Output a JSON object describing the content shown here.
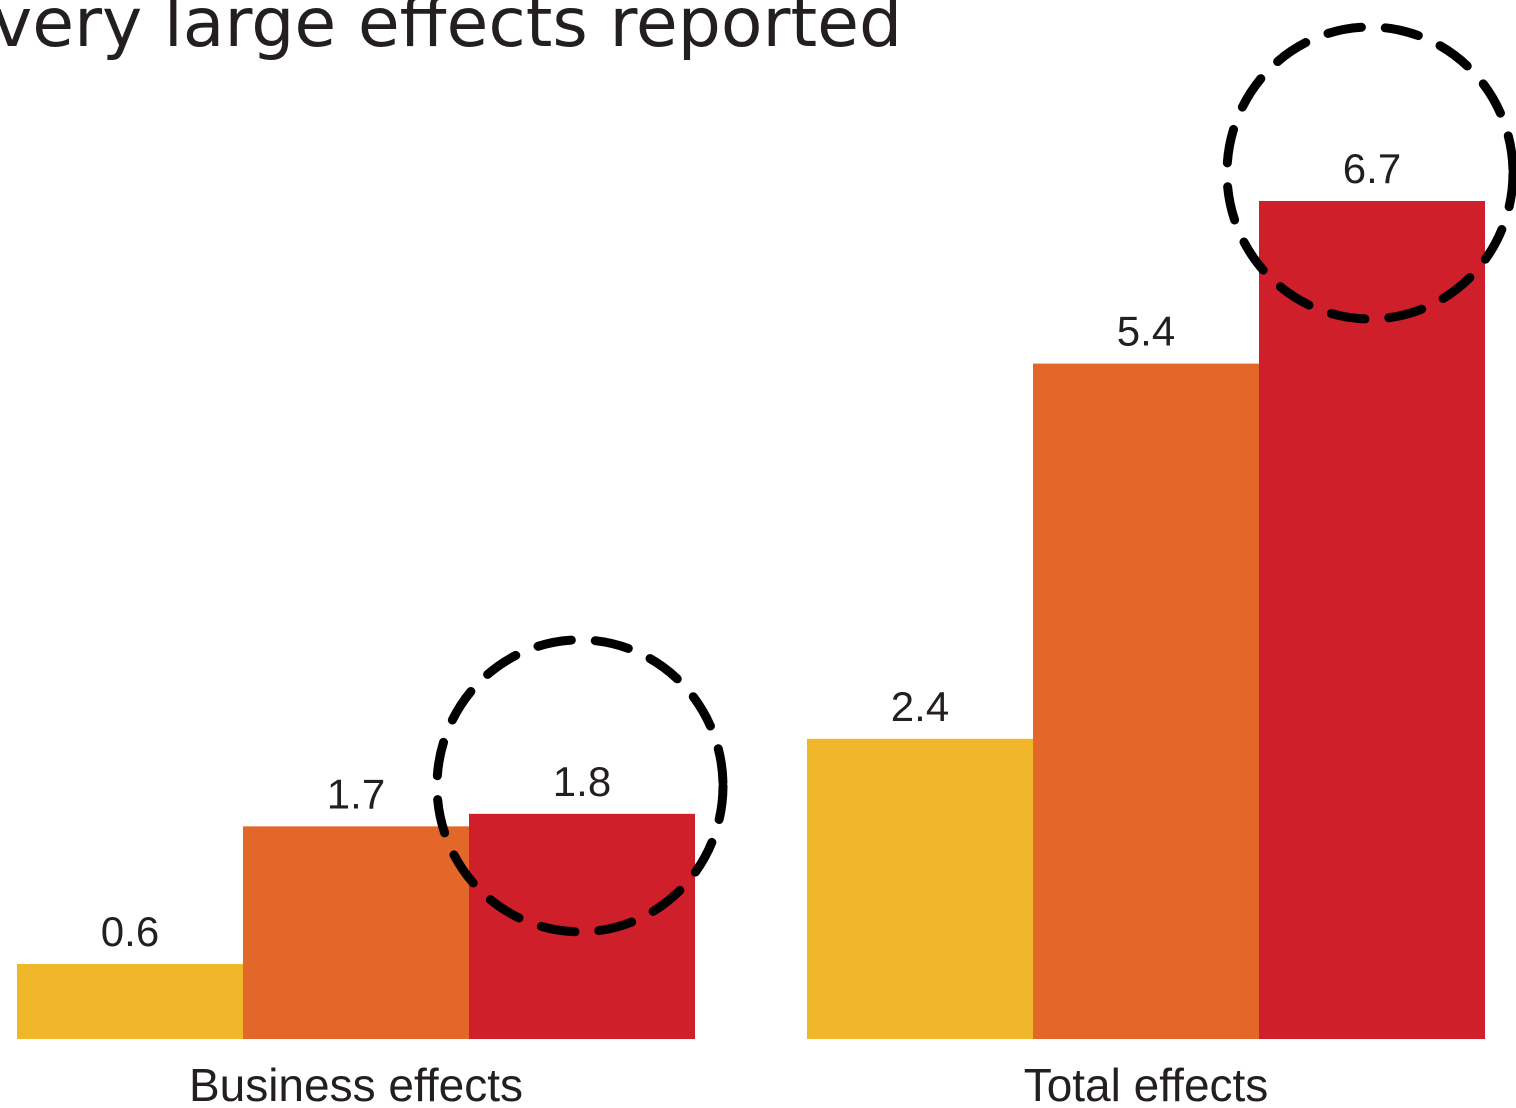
{
  "chart_data": {
    "type": "bar",
    "title": "very large effects reported",
    "categories": [
      "Business effects",
      "Total effects"
    ],
    "series": [
      {
        "values": [
          0.6,
          2.4
        ],
        "color": "#f0b72a"
      },
      {
        "values": [
          1.7,
          5.4
        ],
        "color": "#e36728"
      },
      {
        "values": [
          1.8,
          6.7
        ],
        "color": "#ce1f2b"
      }
    ],
    "value_labels": [
      [
        "0.6",
        "1.7",
        "1.8"
      ],
      [
        "2.4",
        "5.4",
        "6.7"
      ]
    ],
    "highlighted": [
      {
        "category": 0,
        "series": 2
      },
      {
        "category": 1,
        "series": 2
      }
    ],
    "ylim": [
      0,
      6.7
    ],
    "grid": false,
    "legend": "none"
  }
}
